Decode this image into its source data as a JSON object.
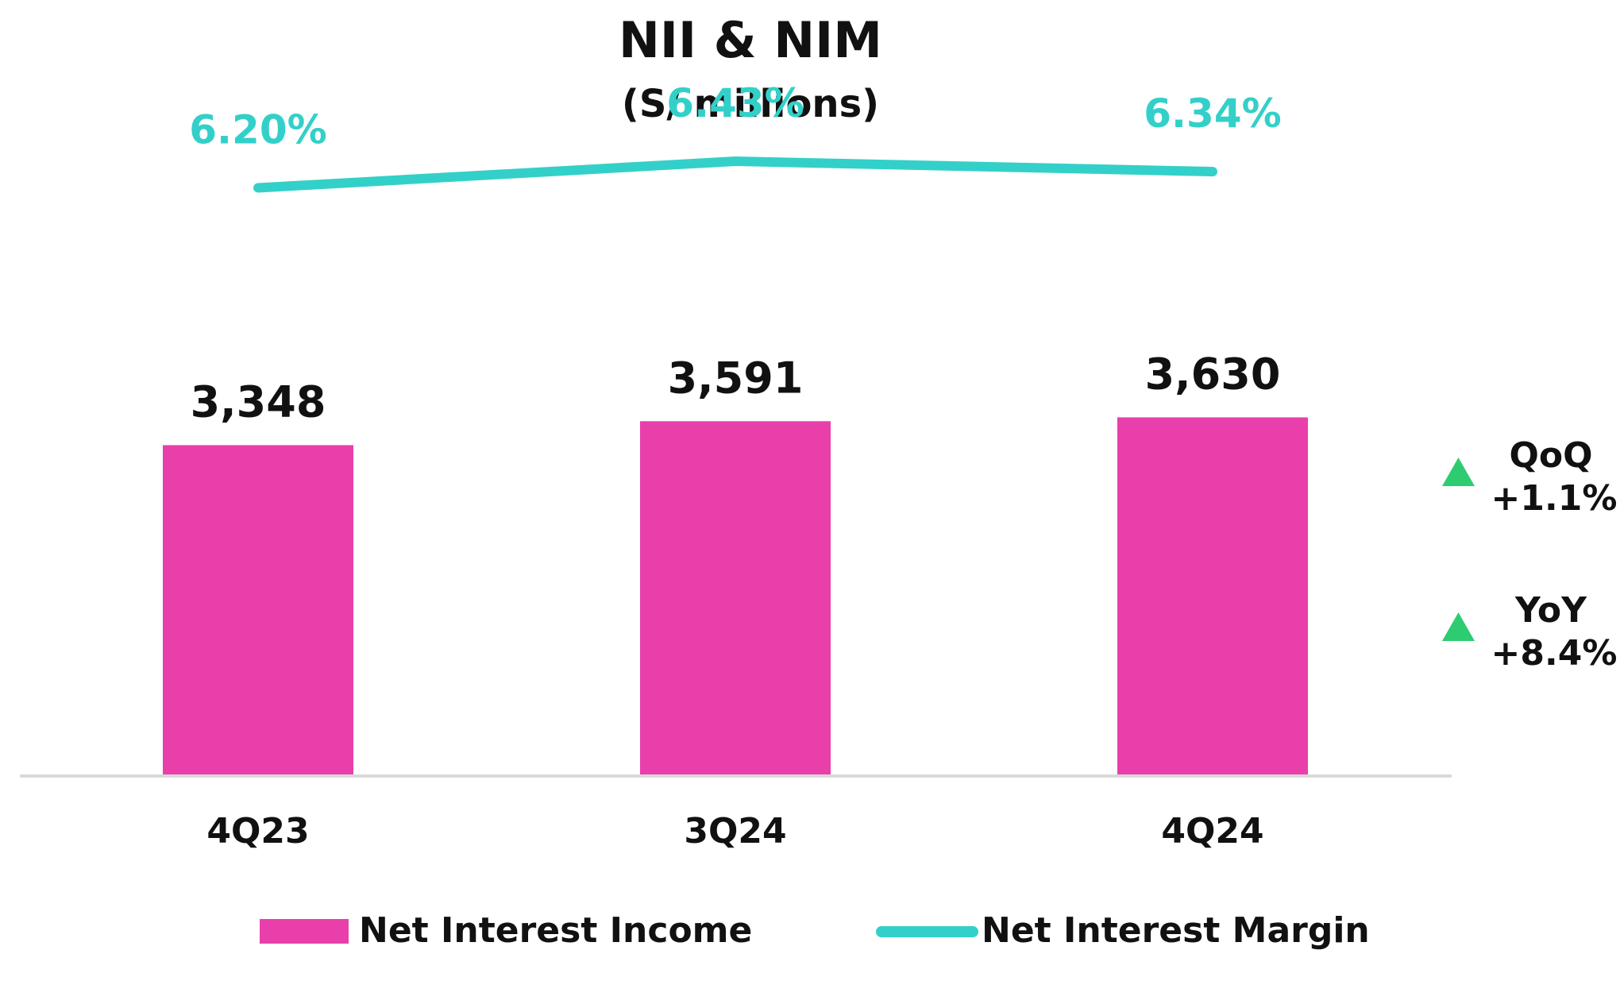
{
  "chart_data": {
    "type": "bar",
    "title": "NII & NIM",
    "subtitle": "(S/ millions)",
    "categories": [
      "4Q23",
      "3Q24",
      "4Q24"
    ],
    "series": [
      {
        "name": "Net Interest Income",
        "type": "bar",
        "values": [
          3348,
          3591,
          3630
        ],
        "labels": [
          "3,348",
          "3,591",
          "3,630"
        ],
        "color": "#e83fab"
      },
      {
        "name": "Net Interest Margin",
        "type": "line",
        "values": [
          6.2,
          6.43,
          6.34
        ],
        "labels": [
          "6.20%",
          "6.43%",
          "6.34%"
        ],
        "color": "#33d0c9"
      }
    ],
    "ylim": [
      0,
      4000
    ],
    "nim_ylim": [
      3.7,
      6.8
    ],
    "grid": false,
    "legend": "bottom",
    "growth": [
      {
        "label": "QoQ",
        "value": "+1.1%",
        "direction": "up"
      },
      {
        "label": "YoY",
        "value": "+8.4%",
        "direction": "up"
      }
    ],
    "growth_arrow_color": "#2ecc71",
    "axis_color": "#d9d9d9"
  }
}
